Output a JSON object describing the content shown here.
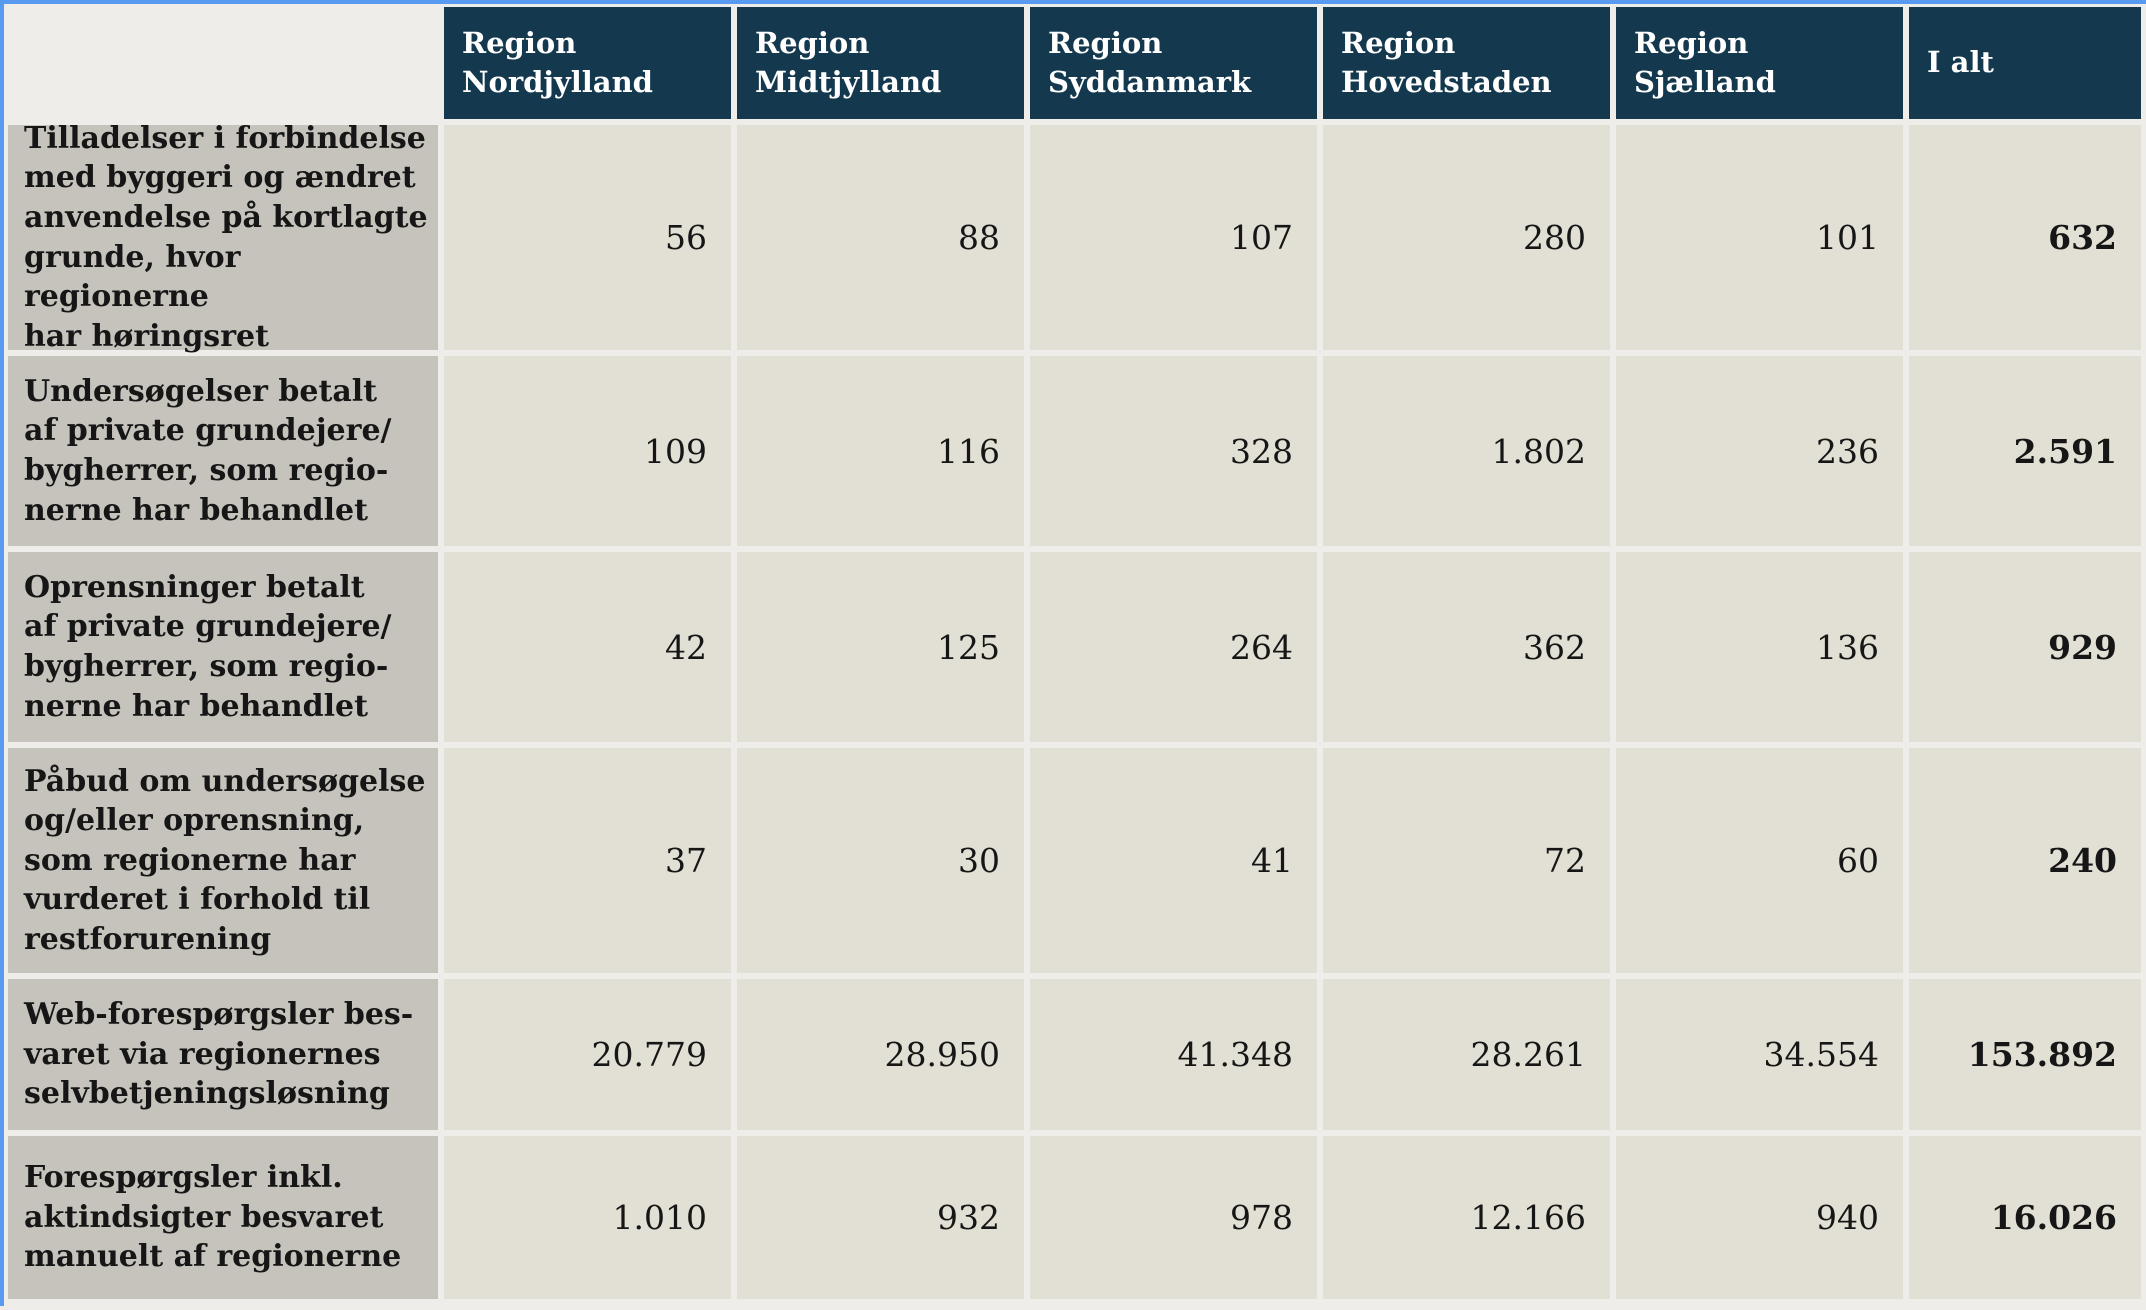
{
  "colors": {
    "selection_border": "#579aef",
    "header_bg": "#14394f",
    "header_text": "#ffffff",
    "row_label_bg": "#c6c3bc",
    "value_cell_bg": "#e2e0d4",
    "page_bg": "#eeede9",
    "text": "#161616"
  },
  "table": {
    "corner_label": "",
    "columns": [
      {
        "label": "Region\nNordjylland"
      },
      {
        "label": "Region\nMidtjylland"
      },
      {
        "label": "Region\nSyddanmark"
      },
      {
        "label": "Region\nHovedstaden"
      },
      {
        "label": "Region\nSjælland"
      },
      {
        "label": "I alt"
      }
    ],
    "rows": [
      {
        "label": "Tilladelser i forbindelse\nmed byggeri og ændret\nanvendelse på kortlagte\ngrunde, hvor regionerne\nhar høringsret",
        "values": [
          "56",
          "88",
          "107",
          "280",
          "101",
          "632"
        ]
      },
      {
        "label": "Undersøgelser betalt\naf private grundejere/\nbygherrer, som regio-\nnerne har behandlet",
        "values": [
          "109",
          "116",
          "328",
          "1.802",
          "236",
          "2.591"
        ]
      },
      {
        "label": "Oprensninger betalt\naf private grundejere/\nbygherrer, som regio-\nnerne har behandlet",
        "values": [
          "42",
          "125",
          "264",
          "362",
          "136",
          "929"
        ]
      },
      {
        "label": "Påbud om undersøgelse\nog/eller oprensning,\nsom regionerne har\nvurderet i forhold til\nrestforurening",
        "values": [
          "37",
          "30",
          "41",
          "72",
          "60",
          "240"
        ]
      },
      {
        "label": "Web-forespørgsler bes-\nvaret via regionernes\nselvbetjeningsløsning",
        "values": [
          "20.779",
          "28.950",
          "41.348",
          "28.261",
          "34.554",
          "153.892"
        ]
      },
      {
        "label": "Forespørgsler inkl.\naktindsigter besvaret\nmanuelt af regionerne",
        "values": [
          "1.010",
          "932",
          "978",
          "12.166",
          "940",
          "16.026"
        ]
      }
    ]
  },
  "chart_data": {
    "type": "table",
    "columns": [
      "Region Nordjylland",
      "Region Midtjylland",
      "Region Syddanmark",
      "Region Hovedstaden",
      "Region Sjælland",
      "I alt"
    ],
    "row_labels": [
      "Tilladelser i forbindelse med byggeri og ændret anvendelse på kortlagte grunde, hvor regionerne har høringsret",
      "Undersøgelser betalt af private grundejere/bygherrer, som regionerne har behandlet",
      "Oprensninger betalt af private grundejere/bygherrer, som regionerne har behandlet",
      "Påbud om undersøgelse og/eller oprensning, som regionerne har vurderet i forhold til restforurening",
      "Web-forespørgsler besvaret via regionernes selvbetjeningsløsning",
      "Forespørgsler inkl. aktindsigter besvaret manuelt af regionerne"
    ],
    "values": [
      [
        56,
        88,
        107,
        280,
        101,
        632
      ],
      [
        109,
        116,
        328,
        1802,
        236,
        2591
      ],
      [
        42,
        125,
        264,
        362,
        136,
        929
      ],
      [
        37,
        30,
        41,
        72,
        60,
        240
      ],
      [
        20779,
        28950,
        41348,
        28261,
        34554,
        153892
      ],
      [
        1010,
        932,
        978,
        12166,
        940,
        16026
      ]
    ],
    "number_format": "da-DK thousands separator '.'",
    "totals_column": "I alt",
    "layout": "header row navy, row labels gray, values right-aligned, totals bold"
  }
}
